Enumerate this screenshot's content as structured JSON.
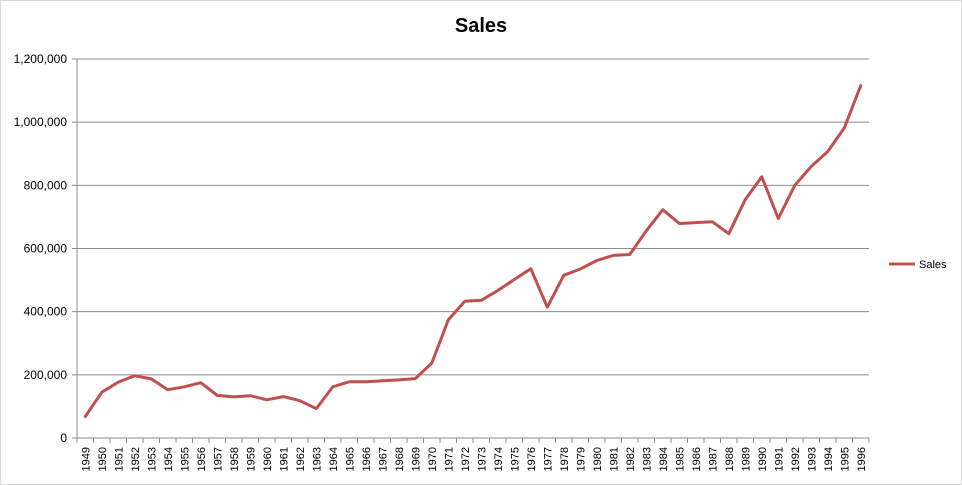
{
  "chart_data": {
    "type": "line",
    "title": "Sales",
    "xlabel": "",
    "ylabel": "",
    "ylim": [
      0,
      1200000
    ],
    "yticks": [
      0,
      200000,
      400000,
      600000,
      800000,
      1000000,
      1200000
    ],
    "ytick_labels": [
      "0",
      "200,000",
      "400,000",
      "600,000",
      "800,000",
      "1,000,000",
      "1,200,000"
    ],
    "grid": "horizontal",
    "legend": "right",
    "categories": [
      "1949",
      "1950",
      "1951",
      "1952",
      "1953",
      "1954",
      "1955",
      "1956",
      "1957",
      "1958",
      "1959",
      "1960",
      "1961",
      "1962",
      "1963",
      "1964",
      "1965",
      "1966",
      "1967",
      "1968",
      "1969",
      "1970",
      "1971",
      "1972",
      "1973",
      "1974",
      "1975",
      "1976",
      "1977",
      "1978",
      "1979",
      "1980",
      "1981",
      "1982",
      "1983",
      "1984",
      "1985",
      "1986",
      "1987",
      "1988",
      "1989",
      "1990",
      "1991",
      "1992",
      "1993",
      "1994",
      "1995",
      "1996"
    ],
    "series": [
      {
        "name": "Sales",
        "color": "#c0504d",
        "values": [
          68000,
          145000,
          177000,
          197000,
          187000,
          153000,
          162000,
          175000,
          135000,
          130000,
          134000,
          121000,
          131000,
          118000,
          93000,
          162000,
          178000,
          178000,
          181000,
          184000,
          188000,
          237000,
          374000,
          433000,
          436000,
          467000,
          502000,
          536000,
          414000,
          515000,
          535000,
          562000,
          578000,
          581000,
          656000,
          723000,
          679000,
          682000,
          685000,
          647000,
          755000,
          827000,
          695000,
          800000,
          860000,
          907000,
          982000,
          1116000
        ]
      }
    ]
  }
}
